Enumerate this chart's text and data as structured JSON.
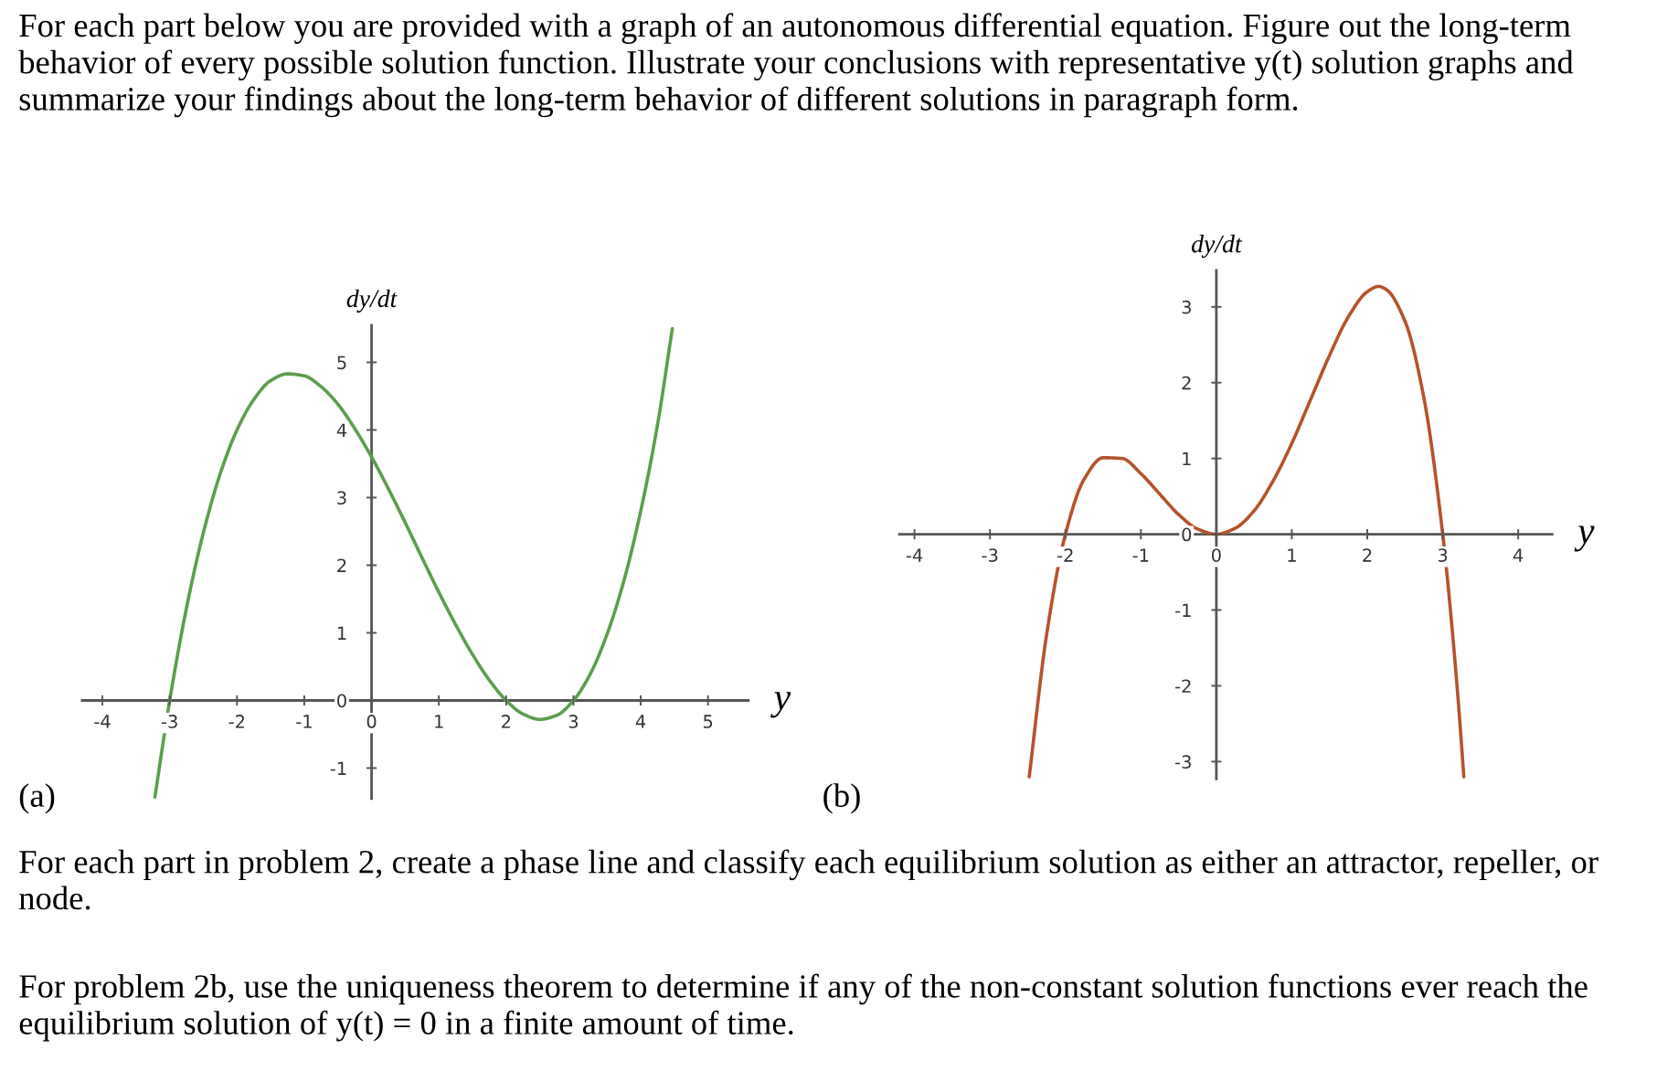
{
  "chart_data": [
    {
      "type": "line",
      "xlabel": "y",
      "ylabel": "dy/dt",
      "xlim": [
        -4.3,
        5.6
      ],
      "ylim": [
        -1.45,
        5.55
      ],
      "xticks": [
        -4,
        -3,
        -2,
        -1,
        0,
        1,
        2,
        3,
        4,
        5
      ],
      "yticks": [
        -1,
        0,
        1,
        2,
        3,
        4,
        5
      ],
      "series": [
        {
          "color": "#5b9e4c",
          "x": [
            -3.22,
            -3,
            -2.75,
            -2.5,
            -2.25,
            -2,
            -1.75,
            -1.5,
            -1.25,
            -1,
            -0.75,
            -0.5,
            -0.25,
            0,
            0.25,
            0.5,
            0.75,
            1,
            1.25,
            1.5,
            1.75,
            2,
            2.25,
            2.5,
            2.75,
            3,
            3.25,
            3.5,
            3.75,
            4,
            4.25,
            4.47
          ],
          "values": [
            -1.43,
            0,
            1.37,
            2.48,
            3.35,
            4.0,
            4.45,
            4.73,
            4.83,
            4.8,
            4.64,
            4.38,
            4.02,
            3.6,
            3.13,
            2.63,
            2.11,
            1.6,
            1.12,
            0.68,
            0.3,
            0,
            -0.2,
            -0.28,
            -0.22,
            0,
            0.39,
            0.98,
            1.77,
            2.8,
            4.08,
            5.5
          ]
        }
      ],
      "annotations": [
        "For each part below you are provided with a graph of an autonomous differential equation. Figure out the long-term behavior of every possible solution function. Illustrate your conclusions with representative y(t) solution graphs and summarize your findings about the long-term behavior of different solutions in paragraph form.",
        "(a)"
      ]
    },
    {
      "type": "line",
      "xlabel": "y",
      "ylabel": "dy/dt",
      "xlim": [
        -4.2,
        4.45
      ],
      "ylim": [
        -3.23,
        3.48
      ],
      "xticks": [
        -4,
        -3,
        -2,
        -1,
        0,
        1,
        2,
        3,
        4
      ],
      "yticks": [
        -3,
        -2,
        -1,
        0,
        1,
        2,
        3
      ],
      "series": [
        {
          "color": "#b4532a",
          "x": [
            -2.48,
            -2.25,
            -2,
            -1.75,
            -1.5,
            -1.25,
            -1,
            -0.75,
            -0.5,
            -0.25,
            0,
            0.25,
            0.5,
            0.75,
            1,
            1.25,
            1.5,
            1.75,
            2,
            2.15,
            2.25,
            2.5,
            2.75,
            3,
            3.1,
            3.2,
            3.28
          ],
          "values": [
            -3.2,
            -1.33,
            0,
            0.73,
            1.01,
            1.0,
            0.8,
            0.53,
            0.26,
            0.07,
            0,
            0.08,
            0.31,
            0.7,
            1.2,
            1.78,
            2.36,
            2.87,
            3.2,
            3.27,
            3.23,
            2.81,
            1.8,
            0,
            -0.98,
            -2.13,
            -3.2
          ]
        }
      ],
      "annotations": [
        "(b)",
        "For each part in problem 2, create a phase line and classify each equilibrium solution as either an attractor, repeller, or node.",
        "For problem 2b, use the uniqueness theorem to determine if any of the non-constant solution functions ever reach the equilibrium solution of y(t) = 0 in a finite amount of time."
      ]
    }
  ]
}
